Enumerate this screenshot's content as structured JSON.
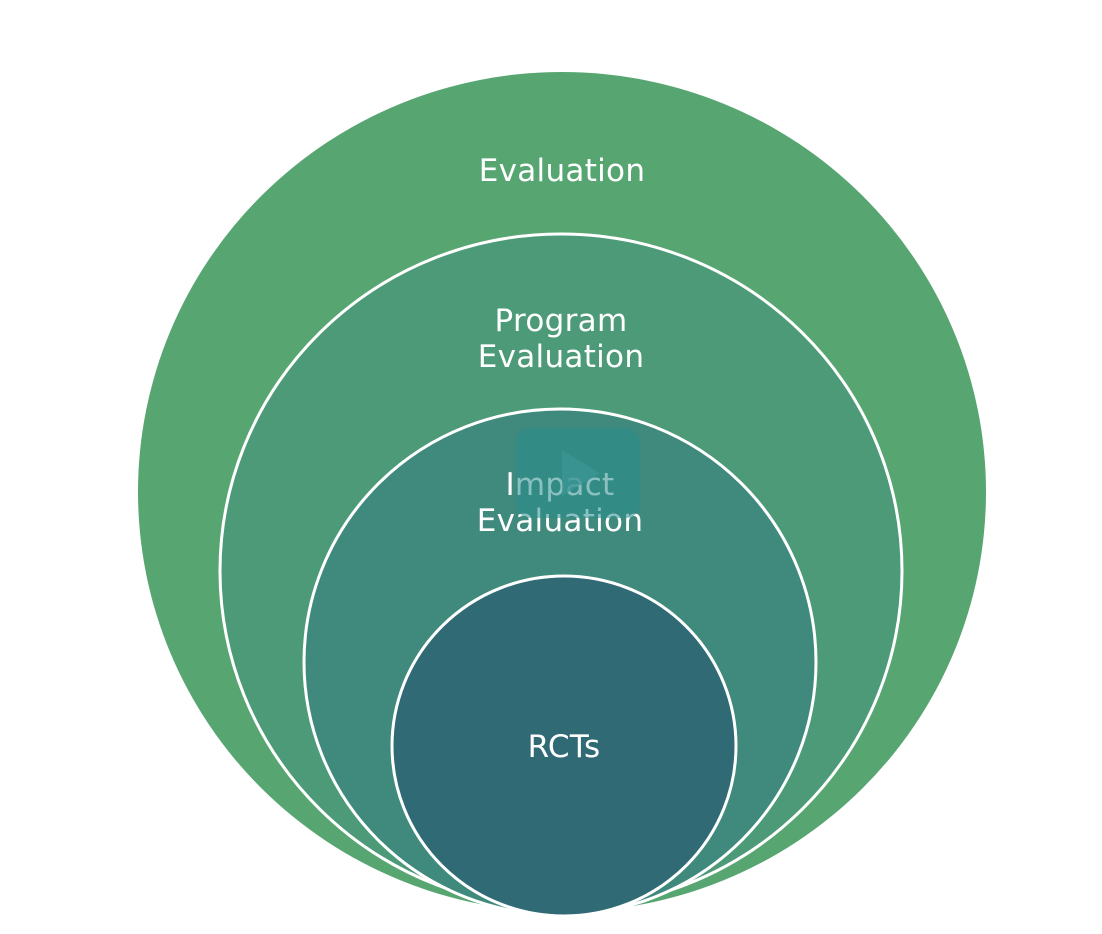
{
  "diagram": {
    "circles": [
      {
        "id": "evaluation",
        "label_lines": [
          "Evaluation"
        ],
        "color": "#57a672"
      },
      {
        "id": "program-evaluation",
        "label_lines": [
          "Program",
          "Evaluation"
        ],
        "color": "#4c9a78"
      },
      {
        "id": "impact-evaluation",
        "label_lines": [
          "Impact",
          "Evaluation"
        ],
        "color": "#3f8a7c"
      },
      {
        "id": "rcts",
        "label_lines": [
          "RCTs"
        ],
        "color": "#2f6a75"
      }
    ],
    "stroke_color": "#ffffff"
  },
  "player": {
    "play_icon": "play-icon"
  }
}
